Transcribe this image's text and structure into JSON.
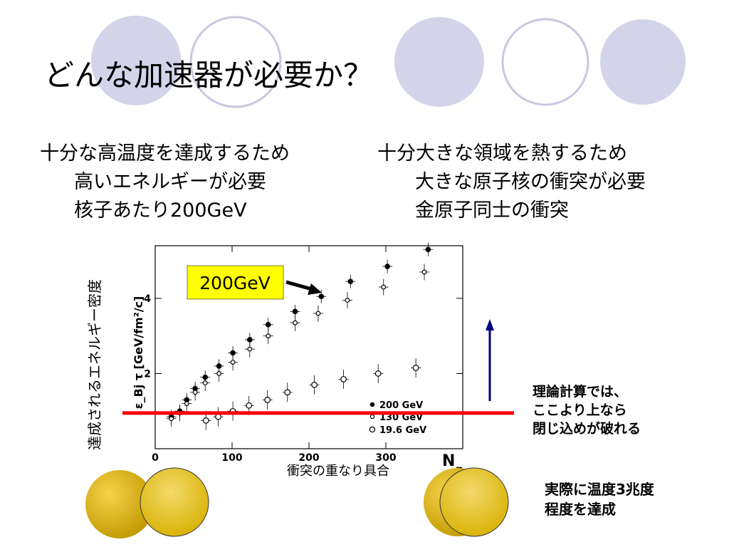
{
  "slide": {
    "title": "どんな加速器が必要か？",
    "left_block": [
      "十分な高温度を達成するため",
      "高いエネルギーが必要",
      "核子あたり200GeV"
    ],
    "right_block": [
      "十分大きな領域を熱するため",
      "大きな原子核の衝突が必要",
      "金原子同士の衝突"
    ],
    "theory_note": [
      "理論計算では、",
      "ここより上なら",
      "閉じ込めが破れる"
    ],
    "temp_note": [
      "実際に温度3兆度",
      "程度を達成"
    ],
    "side_caption": "達成されるエネルギー密度",
    "callout": "200GeV"
  },
  "colors": {
    "deco_circle_fill": "#d3d3ea",
    "deco_circle_outline": "#c8c8e0",
    "callout_bg": "#ffff00",
    "threshold_line": "#ff0000",
    "arrow": "#000080",
    "sphere_gold": "#d9b000"
  },
  "chart_data": {
    "type": "scatter",
    "xlabel": "衝突の重なり具合",
    "x_axis_symbol": "N",
    "x_axis_subscript": "p",
    "ylabel": "ε_Bj τ [GeV/fm²/c]",
    "xlim": [
      0,
      400
    ],
    "ylim": [
      0,
      5.4
    ],
    "x_ticks": [
      0,
      100,
      200,
      300
    ],
    "y_ticks": [
      2,
      4
    ],
    "legend_position": "bottom-right",
    "threshold_y": 0.95,
    "series": [
      {
        "name": "200 GeV",
        "marker": "filled",
        "x": [
          21,
          32,
          41,
          52,
          65,
          83,
          101,
          123,
          147,
          182,
          216,
          254,
          302,
          355
        ],
        "y": [
          0.85,
          1.0,
          1.3,
          1.6,
          1.9,
          2.2,
          2.55,
          2.9,
          3.3,
          3.65,
          4.05,
          4.45,
          4.85,
          5.3
        ]
      },
      {
        "name": "130 GeV",
        "marker": "small-open",
        "x": [
          21,
          32,
          41,
          52,
          65,
          83,
          101,
          123,
          147,
          182,
          212,
          250,
          297,
          350
        ],
        "y": [
          0.8,
          0.95,
          1.2,
          1.5,
          1.75,
          2.0,
          2.3,
          2.65,
          3.0,
          3.35,
          3.6,
          3.95,
          4.3,
          4.7
        ]
      },
      {
        "name": "19.6 GeV",
        "marker": "large-open",
        "x": [
          66,
          82,
          101,
          122,
          146,
          172,
          207,
          245,
          290,
          339
        ],
        "y": [
          0.75,
          0.85,
          1.0,
          1.15,
          1.3,
          1.5,
          1.7,
          1.85,
          2.0,
          2.15
        ]
      }
    ]
  }
}
